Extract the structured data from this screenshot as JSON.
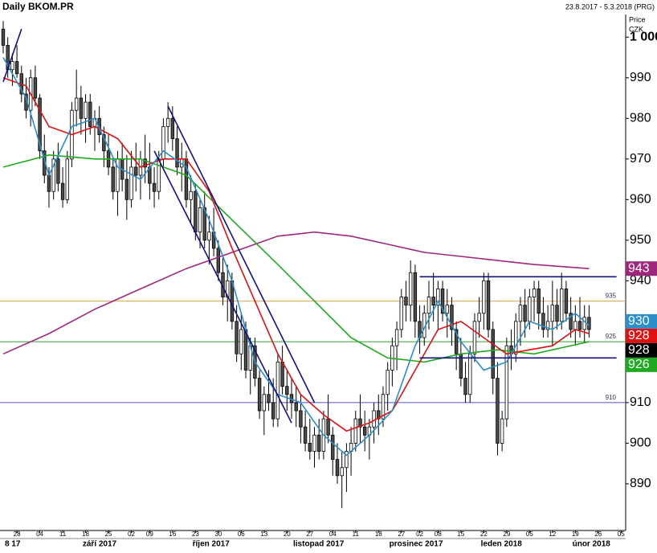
{
  "chart_data": {
    "type": "candlestick",
    "title": "Daily BKOM.PR",
    "subtitle": "23.8.2017 - 5.3.2018 (PRG)",
    "y_axis_label": "Price",
    "unit_label": "CZK",
    "xlim": [
      -0.7,
      136
    ],
    "ylim": [
      878.5,
      1005.2
    ],
    "yticks": [
      890,
      900,
      910,
      920,
      930,
      940,
      950,
      960,
      970,
      980,
      990,
      {
        "value": 1000,
        "label": "1 000"
      }
    ],
    "xticks": [
      {
        "value": 3,
        "label": "28"
      },
      {
        "value": 8,
        "label": "04"
      },
      {
        "value": 13,
        "label": "11"
      },
      {
        "value": 18,
        "label": "18"
      },
      {
        "value": 23,
        "label": "25"
      },
      {
        "value": 28,
        "label": "02"
      },
      {
        "value": 32,
        "label": "09"
      },
      {
        "value": 37,
        "label": "16"
      },
      {
        "value": 42,
        "label": "23"
      },
      {
        "value": 47,
        "label": "30"
      },
      {
        "value": 52,
        "label": "06"
      },
      {
        "value": 57,
        "label": "13"
      },
      {
        "value": 62,
        "label": "20"
      },
      {
        "value": 67,
        "label": "27"
      },
      {
        "value": 72,
        "label": "04"
      },
      {
        "value": 77,
        "label": "11"
      },
      {
        "value": 82,
        "label": "18"
      },
      {
        "value": 87,
        "label": "27"
      },
      {
        "value": 91,
        "label": "02"
      },
      {
        "value": 95,
        "label": "08"
      },
      {
        "value": 100,
        "label": "15"
      },
      {
        "value": 105,
        "label": "22"
      },
      {
        "value": 110,
        "label": "29"
      },
      {
        "value": 115,
        "label": "05"
      },
      {
        "value": 120,
        "label": "12"
      },
      {
        "value": 125,
        "label": "19"
      },
      {
        "value": 130,
        "label": "26"
      },
      {
        "value": 135,
        "label": "05"
      }
    ],
    "months": [
      {
        "value": 0,
        "label": "8 17"
      },
      {
        "value": 17,
        "label": "září 2017"
      },
      {
        "value": 41,
        "label": "říjen 2017"
      },
      {
        "value": 63,
        "label": "listopad 2017"
      },
      {
        "value": 84,
        "label": "prosinec 2017"
      },
      {
        "value": 104,
        "label": "leden 2018"
      },
      {
        "value": 124,
        "label": "únor 2018"
      }
    ],
    "up_color": "#ffffff",
    "down_color": "#4a4a4a",
    "ohlc": [
      [
        1002,
        1004,
        996,
        998
      ],
      [
        998,
        1000,
        990,
        992
      ],
      [
        992,
        996,
        988,
        994
      ],
      [
        994,
        998,
        990,
        991
      ],
      [
        991,
        993,
        984,
        986
      ],
      [
        986,
        990,
        980,
        982
      ],
      [
        982,
        992,
        978,
        990
      ],
      [
        990,
        993,
        983,
        985
      ],
      [
        985,
        986,
        970,
        972
      ],
      [
        972,
        976,
        964,
        966
      ],
      [
        966,
        968,
        958,
        962
      ],
      [
        962,
        972,
        960,
        970
      ],
      [
        970,
        974,
        962,
        964
      ],
      [
        964,
        968,
        958,
        960
      ],
      [
        960,
        972,
        959,
        970
      ],
      [
        970,
        984,
        968,
        982
      ],
      [
        982,
        992,
        978,
        985
      ],
      [
        985,
        988,
        976,
        980
      ],
      [
        980,
        986,
        974,
        984
      ],
      [
        984,
        986,
        976,
        978
      ],
      [
        978,
        982,
        972,
        980
      ],
      [
        980,
        983,
        974,
        976
      ],
      [
        976,
        978,
        968,
        972
      ],
      [
        972,
        976,
        966,
        968
      ],
      [
        968,
        970,
        960,
        962
      ],
      [
        962,
        972,
        956,
        970
      ],
      [
        970,
        974,
        962,
        965
      ],
      [
        965,
        971,
        955,
        960
      ],
      [
        960,
        972,
        958,
        968
      ],
      [
        968,
        974,
        962,
        966
      ],
      [
        966,
        972,
        960,
        970
      ],
      [
        970,
        976,
        964,
        968
      ],
      [
        968,
        974,
        960,
        964
      ],
      [
        964,
        968,
        958,
        962
      ],
      [
        962,
        972,
        960,
        970
      ],
      [
        970,
        980,
        968,
        978
      ],
      [
        978,
        984,
        974,
        980
      ],
      [
        980,
        983,
        972,
        975
      ],
      [
        975,
        978,
        966,
        968
      ],
      [
        968,
        974,
        962,
        970
      ],
      [
        970,
        972,
        958,
        960
      ],
      [
        960,
        966,
        954,
        962
      ],
      [
        962,
        964,
        950,
        952
      ],
      [
        952,
        960,
        948,
        958
      ],
      [
        958,
        962,
        948,
        950
      ],
      [
        950,
        956,
        944,
        952
      ],
      [
        952,
        958,
        946,
        948
      ],
      [
        948,
        950,
        940,
        942
      ],
      [
        942,
        946,
        934,
        936
      ],
      [
        936,
        944,
        930,
        940
      ],
      [
        940,
        942,
        928,
        930
      ],
      [
        930,
        934,
        920,
        922
      ],
      [
        922,
        932,
        918,
        928
      ],
      [
        928,
        930,
        916,
        918
      ],
      [
        918,
        926,
        912,
        924
      ],
      [
        924,
        926,
        914,
        916
      ],
      [
        916,
        918,
        906,
        908
      ],
      [
        908,
        914,
        902,
        912
      ],
      [
        912,
        918,
        908,
        910
      ],
      [
        910,
        916,
        904,
        906
      ],
      [
        906,
        922,
        904,
        920
      ],
      [
        920,
        924,
        912,
        914
      ],
      [
        914,
        918,
        908,
        912
      ],
      [
        912,
        916,
        906,
        910
      ],
      [
        910,
        914,
        904,
        908
      ],
      [
        908,
        912,
        900,
        904
      ],
      [
        904,
        908,
        898,
        900
      ],
      [
        900,
        906,
        896,
        898
      ],
      [
        898,
        904,
        894,
        902
      ],
      [
        902,
        906,
        896,
        898
      ],
      [
        898,
        908,
        896,
        906
      ],
      [
        906,
        912,
        900,
        902
      ],
      [
        902,
        904,
        892,
        896
      ],
      [
        896,
        900,
        890,
        892
      ],
      [
        892,
        898,
        884,
        894
      ],
      [
        894,
        900,
        888,
        898
      ],
      [
        898,
        904,
        892,
        900
      ],
      [
        900,
        908,
        898,
        906
      ],
      [
        906,
        912,
        900,
        904
      ],
      [
        904,
        908,
        898,
        902
      ],
      [
        902,
        906,
        896,
        904
      ],
      [
        904,
        910,
        900,
        908
      ],
      [
        908,
        912,
        902,
        906
      ],
      [
        906,
        914,
        904,
        912
      ],
      [
        912,
        920,
        908,
        918
      ],
      [
        918,
        926,
        914,
        924
      ],
      [
        924,
        930,
        918,
        928
      ],
      [
        928,
        938,
        926,
        936
      ],
      [
        936,
        940,
        930,
        934
      ],
      [
        934,
        945,
        930,
        942
      ],
      [
        942,
        944,
        926,
        930
      ],
      [
        930,
        934,
        922,
        926
      ],
      [
        926,
        934,
        924,
        932
      ],
      [
        932,
        940,
        928,
        936
      ],
      [
        936,
        942,
        930,
        934
      ],
      [
        934,
        940,
        928,
        938
      ],
      [
        938,
        940,
        930,
        932
      ],
      [
        932,
        938,
        926,
        934
      ],
      [
        934,
        936,
        924,
        928
      ],
      [
        928,
        930,
        918,
        922
      ],
      [
        922,
        926,
        914,
        916
      ],
      [
        916,
        920,
        910,
        912
      ],
      [
        912,
        924,
        910,
        922
      ],
      [
        922,
        932,
        920,
        930
      ],
      [
        930,
        936,
        926,
        932
      ],
      [
        932,
        942,
        928,
        940
      ],
      [
        940,
        942,
        926,
        928
      ],
      [
        928,
        930,
        912,
        916
      ],
      [
        916,
        920,
        897,
        900
      ],
      [
        900,
        908,
        898,
        906
      ],
      [
        906,
        926,
        904,
        924
      ],
      [
        924,
        928,
        918,
        922
      ],
      [
        922,
        932,
        920,
        930
      ],
      [
        930,
        936,
        924,
        934
      ],
      [
        934,
        938,
        926,
        930
      ],
      [
        930,
        938,
        928,
        936
      ],
      [
        936,
        940,
        930,
        938
      ],
      [
        938,
        940,
        928,
        932
      ],
      [
        932,
        936,
        926,
        928
      ],
      [
        928,
        934,
        926,
        930
      ],
      [
        930,
        940,
        924,
        934
      ],
      [
        934,
        938,
        928,
        930
      ],
      [
        930,
        942,
        928,
        938
      ],
      [
        938,
        940,
        930,
        932
      ],
      [
        932,
        936,
        926,
        928
      ],
      [
        928,
        934,
        924,
        930
      ],
      [
        930,
        936,
        926,
        928
      ],
      [
        928,
        934,
        925,
        931
      ],
      [
        931,
        934,
        926,
        928
      ]
    ],
    "series": [
      {
        "color": "#a0287c",
        "x": [
          0,
          10,
          20,
          30,
          40,
          50,
          60,
          68,
          76,
          84,
          92,
          100,
          108,
          116,
          128
        ],
        "values": [
          922,
          927,
          933,
          938,
          943,
          947,
          951,
          952,
          951,
          949,
          947,
          946,
          945,
          944,
          943
        ]
      },
      {
        "color": "#1faa1f",
        "x": [
          0,
          10,
          20,
          30,
          40,
          50,
          60,
          68,
          76,
          84,
          92,
          100,
          108,
          116,
          128
        ],
        "values": [
          968,
          971,
          970,
          970,
          966,
          955,
          944,
          935,
          926,
          921,
          920,
          922,
          923,
          922,
          925
        ]
      },
      {
        "color": "#e01010",
        "x": [
          0,
          5,
          10,
          15,
          20,
          25,
          30,
          35,
          40,
          45,
          50,
          55,
          60,
          65,
          70,
          75,
          80,
          85,
          90,
          95,
          100,
          105,
          110,
          115,
          120,
          125,
          128
        ],
        "values": [
          990,
          988,
          978,
          976,
          978,
          975,
          968,
          970,
          970,
          962,
          948,
          935,
          922,
          912,
          907,
          903,
          905,
          908,
          918,
          928,
          930,
          926,
          922,
          923,
          924,
          928,
          927
        ]
      },
      {
        "color": "#2a8fc8",
        "x": [
          0,
          5,
          10,
          15,
          20,
          25,
          30,
          35,
          40,
          45,
          50,
          55,
          60,
          65,
          70,
          75,
          80,
          85,
          90,
          95,
          100,
          105,
          110,
          115,
          120,
          125,
          128
        ],
        "values": [
          995,
          985,
          966,
          978,
          980,
          968,
          965,
          972,
          968,
          955,
          940,
          920,
          912,
          910,
          902,
          897,
          902,
          908,
          924,
          935,
          925,
          918,
          920,
          930,
          928,
          932,
          929
        ]
      }
    ],
    "levels": [
      {
        "value": 935,
        "color": "#f0a050"
      },
      {
        "value": 925,
        "color": "#30a030"
      },
      {
        "value": 910,
        "color": "#5050c0"
      }
    ],
    "trendlines": [
      [
        0,
        989,
        4,
        1002
      ],
      [
        36,
        983,
        68,
        910
      ],
      [
        33,
        972,
        63,
        905
      ],
      [
        91,
        941,
        134,
        941
      ],
      [
        91,
        921,
        134,
        921
      ]
    ],
    "price_tags": [
      {
        "value": 943,
        "color": "#a0287c"
      },
      {
        "value": 930,
        "color": "#2a8fc8"
      },
      {
        "value": 928,
        "color": "#e01010"
      },
      {
        "value": 928,
        "color": "#000000"
      },
      {
        "value": 926,
        "color": "#1faa1f"
      }
    ]
  }
}
